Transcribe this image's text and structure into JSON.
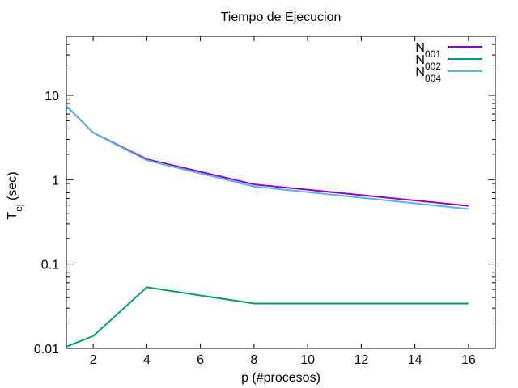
{
  "chart_data": {
    "type": "line",
    "title": "Tiempo de Ejecucion",
    "xlabel": "p (#procesos)",
    "ylabel": "Tej (sec)",
    "ylabel_base": "T",
    "ylabel_sub": "ej",
    "ylabel_suffix": " (sec)",
    "xlim": [
      1,
      17
    ],
    "ylim": [
      0.01,
      50
    ],
    "yscale": "log",
    "xticks": [
      2,
      4,
      6,
      8,
      10,
      12,
      14,
      16
    ],
    "yticks": [
      0.01,
      0.1,
      1,
      10
    ],
    "ytick_labels": [
      "0.01",
      "0.1",
      "1",
      "10"
    ],
    "grid": false,
    "legend_position": "top-right",
    "x": [
      1,
      2,
      4,
      8,
      16
    ],
    "series": [
      {
        "name": "N001",
        "name_base": "N",
        "name_sub": "001",
        "color": "#9400d3",
        "values": [
          7.5,
          3.6,
          1.75,
          0.88,
          0.49
        ]
      },
      {
        "name": "N002",
        "name_base": "N",
        "name_sub": "002",
        "color": "#009e73",
        "values": [
          0.0105,
          0.014,
          0.053,
          0.034,
          0.034
        ]
      },
      {
        "name": "N004",
        "name_base": "N",
        "name_sub": "004",
        "color": "#56b4e9",
        "values": [
          7.5,
          3.6,
          1.7,
          0.83,
          0.45
        ]
      }
    ]
  }
}
